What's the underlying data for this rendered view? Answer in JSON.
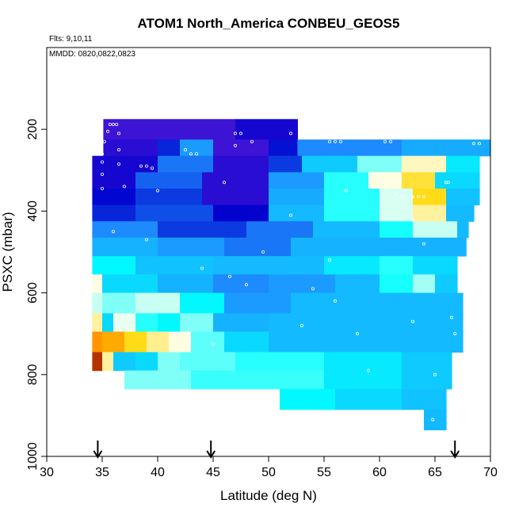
{
  "chart_data": {
    "type": "heatmap",
    "title": "ATOM1 North_America CONBEU_GEOS5",
    "notes": [
      "Flts: 9,10,11",
      "MMDD: 0820,0822,0823"
    ],
    "xlabel": "Latitude (deg N)",
    "ylabel": "PSXC (mbar)",
    "xlim": [
      30,
      70
    ],
    "ylim": [
      1000,
      0
    ],
    "y_inverted": true,
    "x_ticks": [
      "30",
      "35",
      "40",
      "45",
      "50",
      "55",
      "60",
      "65",
      "70"
    ],
    "y_ticks": [
      "200",
      "400",
      "600",
      "800",
      "1000"
    ],
    "x_tick_values": [
      30,
      35,
      40,
      45,
      50,
      55,
      60,
      65,
      70
    ],
    "y_tick_values": [
      200,
      400,
      600,
      800,
      1000
    ],
    "grid": false,
    "legend": "none",
    "colorscale": [
      "#8b0000",
      "#ff8c00",
      "#ffd700",
      "#fffff0",
      "#00ffff",
      "#1e90ff",
      "#0000cd",
      "#8a2be2"
    ],
    "markers": [
      34.6,
      44.8,
      66.8
    ],
    "level_bands": [
      {
        "p_top": 175,
        "p_bot": 225,
        "segments": [
          {
            "lat": [
              35.1,
              47.0
            ],
            "value": 0.92
          },
          {
            "lat": [
              47.0,
              52.6
            ],
            "value": 0.88
          }
        ]
      },
      {
        "p_top": 225,
        "p_bot": 265,
        "segments": [
          {
            "lat": [
              35.1,
              40.0
            ],
            "value": 0.9
          },
          {
            "lat": [
              40.0,
              42.0
            ],
            "value": 0.82
          },
          {
            "lat": [
              42.0,
              45.0
            ],
            "value": 0.7
          },
          {
            "lat": [
              45.0,
              50.0
            ],
            "value": 0.92
          },
          {
            "lat": [
              50.0,
              52.6
            ],
            "value": 0.84
          },
          {
            "lat": [
              52.6,
              62.0
            ],
            "value": 0.72
          },
          {
            "lat": [
              62.0,
              70.0
            ],
            "value": 0.68
          }
        ]
      },
      {
        "p_top": 265,
        "p_bot": 305,
        "segments": [
          {
            "lat": [
              34.1,
              40.0
            ],
            "value": 0.88
          },
          {
            "lat": [
              40.0,
              45.0
            ],
            "value": 0.74
          },
          {
            "lat": [
              45.0,
              50.0
            ],
            "value": 0.9
          },
          {
            "lat": [
              50.0,
              53.0
            ],
            "value": 0.8
          },
          {
            "lat": [
              53.0,
              58.0
            ],
            "value": 0.64
          },
          {
            "lat": [
              58.0,
              62.0
            ],
            "value": 0.5
          },
          {
            "lat": [
              62.0,
              66.0
            ],
            "value": 0.4
          },
          {
            "lat": [
              66.0,
              69.0
            ],
            "value": 0.6
          }
        ]
      },
      {
        "p_top": 305,
        "p_bot": 345,
        "segments": [
          {
            "lat": [
              34.1,
              38.0
            ],
            "value": 0.88
          },
          {
            "lat": [
              38.0,
              44.0
            ],
            "value": 0.76
          },
          {
            "lat": [
              44.0,
              50.0
            ],
            "value": 0.9
          },
          {
            "lat": [
              50.0,
              55.0
            ],
            "value": 0.7
          },
          {
            "lat": [
              55.0,
              59.0
            ],
            "value": 0.55
          },
          {
            "lat": [
              59.0,
              62.0
            ],
            "value": 0.42
          },
          {
            "lat": [
              62.0,
              65.0
            ],
            "value": 0.32
          },
          {
            "lat": [
              65.0,
              69.0
            ],
            "value": 0.62
          }
        ]
      },
      {
        "p_top": 345,
        "p_bot": 385,
        "segments": [
          {
            "lat": [
              34.1,
              38.0
            ],
            "value": 0.85
          },
          {
            "lat": [
              38.0,
              44.0
            ],
            "value": 0.8
          },
          {
            "lat": [
              44.0,
              50.0
            ],
            "value": 0.9
          },
          {
            "lat": [
              50.0,
              55.0
            ],
            "value": 0.68
          },
          {
            "lat": [
              55.0,
              60.0
            ],
            "value": 0.55
          },
          {
            "lat": [
              60.0,
              63.0
            ],
            "value": 0.45
          },
          {
            "lat": [
              63.0,
              66.0
            ],
            "value": 0.3
          },
          {
            "lat": [
              66.0,
              69.0
            ],
            "value": 0.65
          }
        ]
      },
      {
        "p_top": 385,
        "p_bot": 425,
        "segments": [
          {
            "lat": [
              34.1,
              38.0
            ],
            "value": 0.82
          },
          {
            "lat": [
              38.0,
              45.0
            ],
            "value": 0.78
          },
          {
            "lat": [
              45.0,
              50.0
            ],
            "value": 0.86
          },
          {
            "lat": [
              50.0,
              55.0
            ],
            "value": 0.66
          },
          {
            "lat": [
              55.0,
              60.0
            ],
            "value": 0.55
          },
          {
            "lat": [
              60.0,
              63.0
            ],
            "value": 0.45
          },
          {
            "lat": [
              63.0,
              66.0
            ],
            "value": 0.38
          },
          {
            "lat": [
              66.0,
              68.5
            ],
            "value": 0.66
          }
        ]
      },
      {
        "p_top": 425,
        "p_bot": 465,
        "segments": [
          {
            "lat": [
              34.1,
              40.0
            ],
            "value": 0.72
          },
          {
            "lat": [
              40.0,
              48.0
            ],
            "value": 0.8
          },
          {
            "lat": [
              48.0,
              54.0
            ],
            "value": 0.74
          },
          {
            "lat": [
              54.0,
              60.0
            ],
            "value": 0.66
          },
          {
            "lat": [
              60.0,
              63.0
            ],
            "value": 0.56
          },
          {
            "lat": [
              63.0,
              67.0
            ],
            "value": 0.46
          },
          {
            "lat": [
              67.0,
              68.0
            ],
            "value": 0.66
          }
        ]
      },
      {
        "p_top": 465,
        "p_bot": 510,
        "segments": [
          {
            "lat": [
              34.1,
              40.0
            ],
            "value": 0.67
          },
          {
            "lat": [
              40.0,
              46.0
            ],
            "value": 0.7
          },
          {
            "lat": [
              46.0,
              52.0
            ],
            "value": 0.74
          },
          {
            "lat": [
              52.0,
              67.8
            ],
            "value": 0.67
          }
        ]
      },
      {
        "p_top": 510,
        "p_bot": 555,
        "segments": [
          {
            "lat": [
              34.1,
              38.0
            ],
            "value": 0.58
          },
          {
            "lat": [
              38.0,
              45.0
            ],
            "value": 0.65
          },
          {
            "lat": [
              45.0,
              55.0
            ],
            "value": 0.66
          },
          {
            "lat": [
              55.0,
              60.0
            ],
            "value": 0.6
          },
          {
            "lat": [
              60.0,
              63.0
            ],
            "value": 0.55
          },
          {
            "lat": [
              63.0,
              67.0
            ],
            "value": 0.62
          }
        ]
      },
      {
        "p_top": 555,
        "p_bot": 600,
        "segments": [
          {
            "lat": [
              34.1,
              35.0
            ],
            "value": 0.42
          },
          {
            "lat": [
              35.0,
              40.0
            ],
            "value": 0.62
          },
          {
            "lat": [
              40.0,
              45.0
            ],
            "value": 0.67
          },
          {
            "lat": [
              45.0,
              50.0
            ],
            "value": 0.72
          },
          {
            "lat": [
              50.0,
              56.0
            ],
            "value": 0.7
          },
          {
            "lat": [
              56.0,
              60.0
            ],
            "value": 0.66
          },
          {
            "lat": [
              60.0,
              63.0
            ],
            "value": 0.56
          },
          {
            "lat": [
              63.0,
              65.0
            ],
            "value": 0.48
          },
          {
            "lat": [
              65.0,
              67.0
            ],
            "value": 0.64
          }
        ]
      },
      {
        "p_top": 600,
        "p_bot": 650,
        "segments": [
          {
            "lat": [
              34.1,
              35.0
            ],
            "value": 0.46
          },
          {
            "lat": [
              35.0,
              38.0
            ],
            "value": 0.5
          },
          {
            "lat": [
              38.0,
              42.0
            ],
            "value": 0.46
          },
          {
            "lat": [
              42.0,
              46.0
            ],
            "value": 0.58
          },
          {
            "lat": [
              46.0,
              52.0
            ],
            "value": 0.7
          },
          {
            "lat": [
              52.0,
              67.5
            ],
            "value": 0.66
          }
        ]
      },
      {
        "p_top": 650,
        "p_bot": 695,
        "segments": [
          {
            "lat": [
              34.1,
              35.0
            ],
            "value": 0.38
          },
          {
            "lat": [
              35.0,
              36.0
            ],
            "value": 0.62
          },
          {
            "lat": [
              36.0,
              38.0
            ],
            "value": 0.44
          },
          {
            "lat": [
              38.0,
              40.0
            ],
            "value": 0.55
          },
          {
            "lat": [
              40.0,
              42.0
            ],
            "value": 0.58
          },
          {
            "lat": [
              42.0,
              45.0
            ],
            "value": 0.5
          },
          {
            "lat": [
              45.0,
              50.0
            ],
            "value": 0.67
          },
          {
            "lat": [
              50.0,
              67.5
            ],
            "value": 0.66
          }
        ]
      },
      {
        "p_top": 695,
        "p_bot": 745,
        "segments": [
          {
            "lat": [
              34.1,
              35.0
            ],
            "value": 0.16
          },
          {
            "lat": [
              35.0,
              37.0
            ],
            "value": 0.2
          },
          {
            "lat": [
              37.0,
              39.0
            ],
            "value": 0.3
          },
          {
            "lat": [
              39.0,
              41.0
            ],
            "value": 0.37
          },
          {
            "lat": [
              41.0,
              43.0
            ],
            "value": 0.42
          },
          {
            "lat": [
              43.0,
              46.0
            ],
            "value": 0.52
          },
          {
            "lat": [
              46.0,
              50.0
            ],
            "value": 0.62
          },
          {
            "lat": [
              50.0,
              67.5
            ],
            "value": 0.66
          }
        ]
      },
      {
        "p_top": 745,
        "p_bot": 790,
        "segments": [
          {
            "lat": [
              34.1,
              35.0
            ],
            "value": 0.05
          },
          {
            "lat": [
              35.0,
              36.0
            ],
            "value": 0.38
          },
          {
            "lat": [
              36.0,
              38.0
            ],
            "value": 0.64
          },
          {
            "lat": [
              38.0,
              40.0
            ],
            "value": 0.62
          },
          {
            "lat": [
              40.0,
              42.0
            ],
            "value": 0.5
          },
          {
            "lat": [
              42.0,
              47.0
            ],
            "value": 0.52
          },
          {
            "lat": [
              47.0,
              55.0
            ],
            "value": 0.55
          },
          {
            "lat": [
              55.0,
              62.0
            ],
            "value": 0.6
          },
          {
            "lat": [
              62.0,
              66.5
            ],
            "value": 0.64
          }
        ]
      },
      {
        "p_top": 790,
        "p_bot": 835,
        "segments": [
          {
            "lat": [
              37.0,
              43.0
            ],
            "value": 0.5
          },
          {
            "lat": [
              43.0,
              55.0
            ],
            "value": 0.54
          },
          {
            "lat": [
              55.0,
              62.0
            ],
            "value": 0.6
          },
          {
            "lat": [
              62.0,
              66.5
            ],
            "value": 0.64
          }
        ]
      },
      {
        "p_top": 835,
        "p_bot": 885,
        "segments": [
          {
            "lat": [
              51.0,
              56.0
            ],
            "value": 0.58
          },
          {
            "lat": [
              56.0,
              62.0
            ],
            "value": 0.62
          },
          {
            "lat": [
              62.0,
              66.0
            ],
            "value": 0.65
          }
        ]
      },
      {
        "p_top": 885,
        "p_bot": 935,
        "segments": [
          {
            "lat": [
              64.0,
              66.0
            ],
            "value": 0.66
          }
        ]
      }
    ],
    "samples": [
      {
        "lat": 35.7,
        "p": 188
      },
      {
        "lat": 36.0,
        "p": 188
      },
      {
        "lat": 36.3,
        "p": 188
      },
      {
        "lat": 35.5,
        "p": 205
      },
      {
        "lat": 35.2,
        "p": 230
      },
      {
        "lat": 36.5,
        "p": 210
      },
      {
        "lat": 35.0,
        "p": 260
      },
      {
        "lat": 35.0,
        "p": 280
      },
      {
        "lat": 35.0,
        "p": 310
      },
      {
        "lat": 35.0,
        "p": 345
      },
      {
        "lat": 36.5,
        "p": 250
      },
      {
        "lat": 36.5,
        "p": 285
      },
      {
        "lat": 37.0,
        "p": 340
      },
      {
        "lat": 38.5,
        "p": 290
      },
      {
        "lat": 39.0,
        "p": 290
      },
      {
        "lat": 39.5,
        "p": 295
      },
      {
        "lat": 40.0,
        "p": 350
      },
      {
        "lat": 42.5,
        "p": 250
      },
      {
        "lat": 43.0,
        "p": 260
      },
      {
        "lat": 43.5,
        "p": 260
      },
      {
        "lat": 47.0,
        "p": 210
      },
      {
        "lat": 47.5,
        "p": 210
      },
      {
        "lat": 47.0,
        "p": 240
      },
      {
        "lat": 48.5,
        "p": 230
      },
      {
        "lat": 52.0,
        "p": 210
      },
      {
        "lat": 55.5,
        "p": 230
      },
      {
        "lat": 56.0,
        "p": 230
      },
      {
        "lat": 56.5,
        "p": 230
      },
      {
        "lat": 60.5,
        "p": 230
      },
      {
        "lat": 61.0,
        "p": 230
      },
      {
        "lat": 66.0,
        "p": 330
      },
      {
        "lat": 66.2,
        "p": 330
      },
      {
        "lat": 60.5,
        "p": 340
      },
      {
        "lat": 61.5,
        "p": 360
      },
      {
        "lat": 62.0,
        "p": 365
      },
      {
        "lat": 63.0,
        "p": 365
      },
      {
        "lat": 63.5,
        "p": 365
      },
      {
        "lat": 64.0,
        "p": 365
      },
      {
        "lat": 68.5,
        "p": 235
      },
      {
        "lat": 69.0,
        "p": 235
      },
      {
        "lat": 36.0,
        "p": 450
      },
      {
        "lat": 39.0,
        "p": 470
      },
      {
        "lat": 46.0,
        "p": 330
      },
      {
        "lat": 52.0,
        "p": 410
      },
      {
        "lat": 57.0,
        "p": 350
      },
      {
        "lat": 63.0,
        "p": 420
      },
      {
        "lat": 64.0,
        "p": 480
      },
      {
        "lat": 44.0,
        "p": 540
      },
      {
        "lat": 55.5,
        "p": 520
      },
      {
        "lat": 56.0,
        "p": 620
      },
      {
        "lat": 59.0,
        "p": 790
      },
      {
        "lat": 65.0,
        "p": 800
      },
      {
        "lat": 66.5,
        "p": 660
      },
      {
        "lat": 66.8,
        "p": 700
      },
      {
        "lat": 49.5,
        "p": 500
      },
      {
        "lat": 46.5,
        "p": 560
      },
      {
        "lat": 48.0,
        "p": 580
      },
      {
        "lat": 54.0,
        "p": 590
      },
      {
        "lat": 58.0,
        "p": 700
      },
      {
        "lat": 64.8,
        "p": 910
      },
      {
        "lat": 65.0,
        "p": 940
      },
      {
        "lat": 63.0,
        "p": 670
      },
      {
        "lat": 45.0,
        "p": 725
      },
      {
        "lat": 42.0,
        "p": 700
      },
      {
        "lat": 53.0,
        "p": 680
      }
    ]
  }
}
